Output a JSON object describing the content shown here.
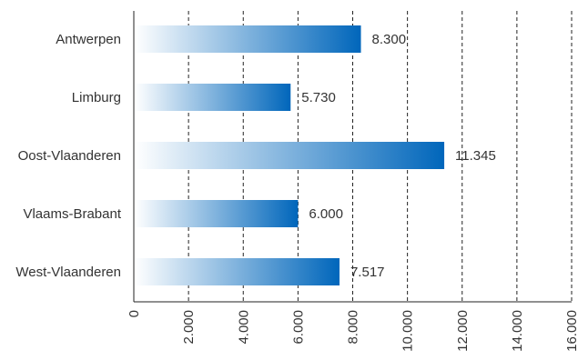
{
  "chart_data": {
    "type": "bar",
    "orientation": "horizontal",
    "categories": [
      "Antwerpen",
      "Limburg",
      "Oost-Vlaanderen",
      "Vlaams-Brabant",
      "West-Vlaanderen"
    ],
    "values": [
      8300,
      5730,
      11345,
      6000,
      7517
    ],
    "value_labels": [
      "8.300",
      "5.730",
      "11.345",
      "6.000",
      "7.517"
    ],
    "xlim": [
      0,
      16000
    ],
    "x_ticks": [
      0,
      2000,
      4000,
      6000,
      8000,
      10000,
      12000,
      14000,
      16000
    ],
    "x_tick_labels": [
      "0",
      "2.000",
      "4.000",
      "6.000",
      "8.000",
      "10.000",
      "12.000",
      "14.000",
      "16.000"
    ],
    "title": "",
    "xlabel": "",
    "ylabel": "",
    "grid": "vertical dashed",
    "legend": "none",
    "bar_gradient": [
      "#ffffff",
      "#0066bb"
    ]
  }
}
